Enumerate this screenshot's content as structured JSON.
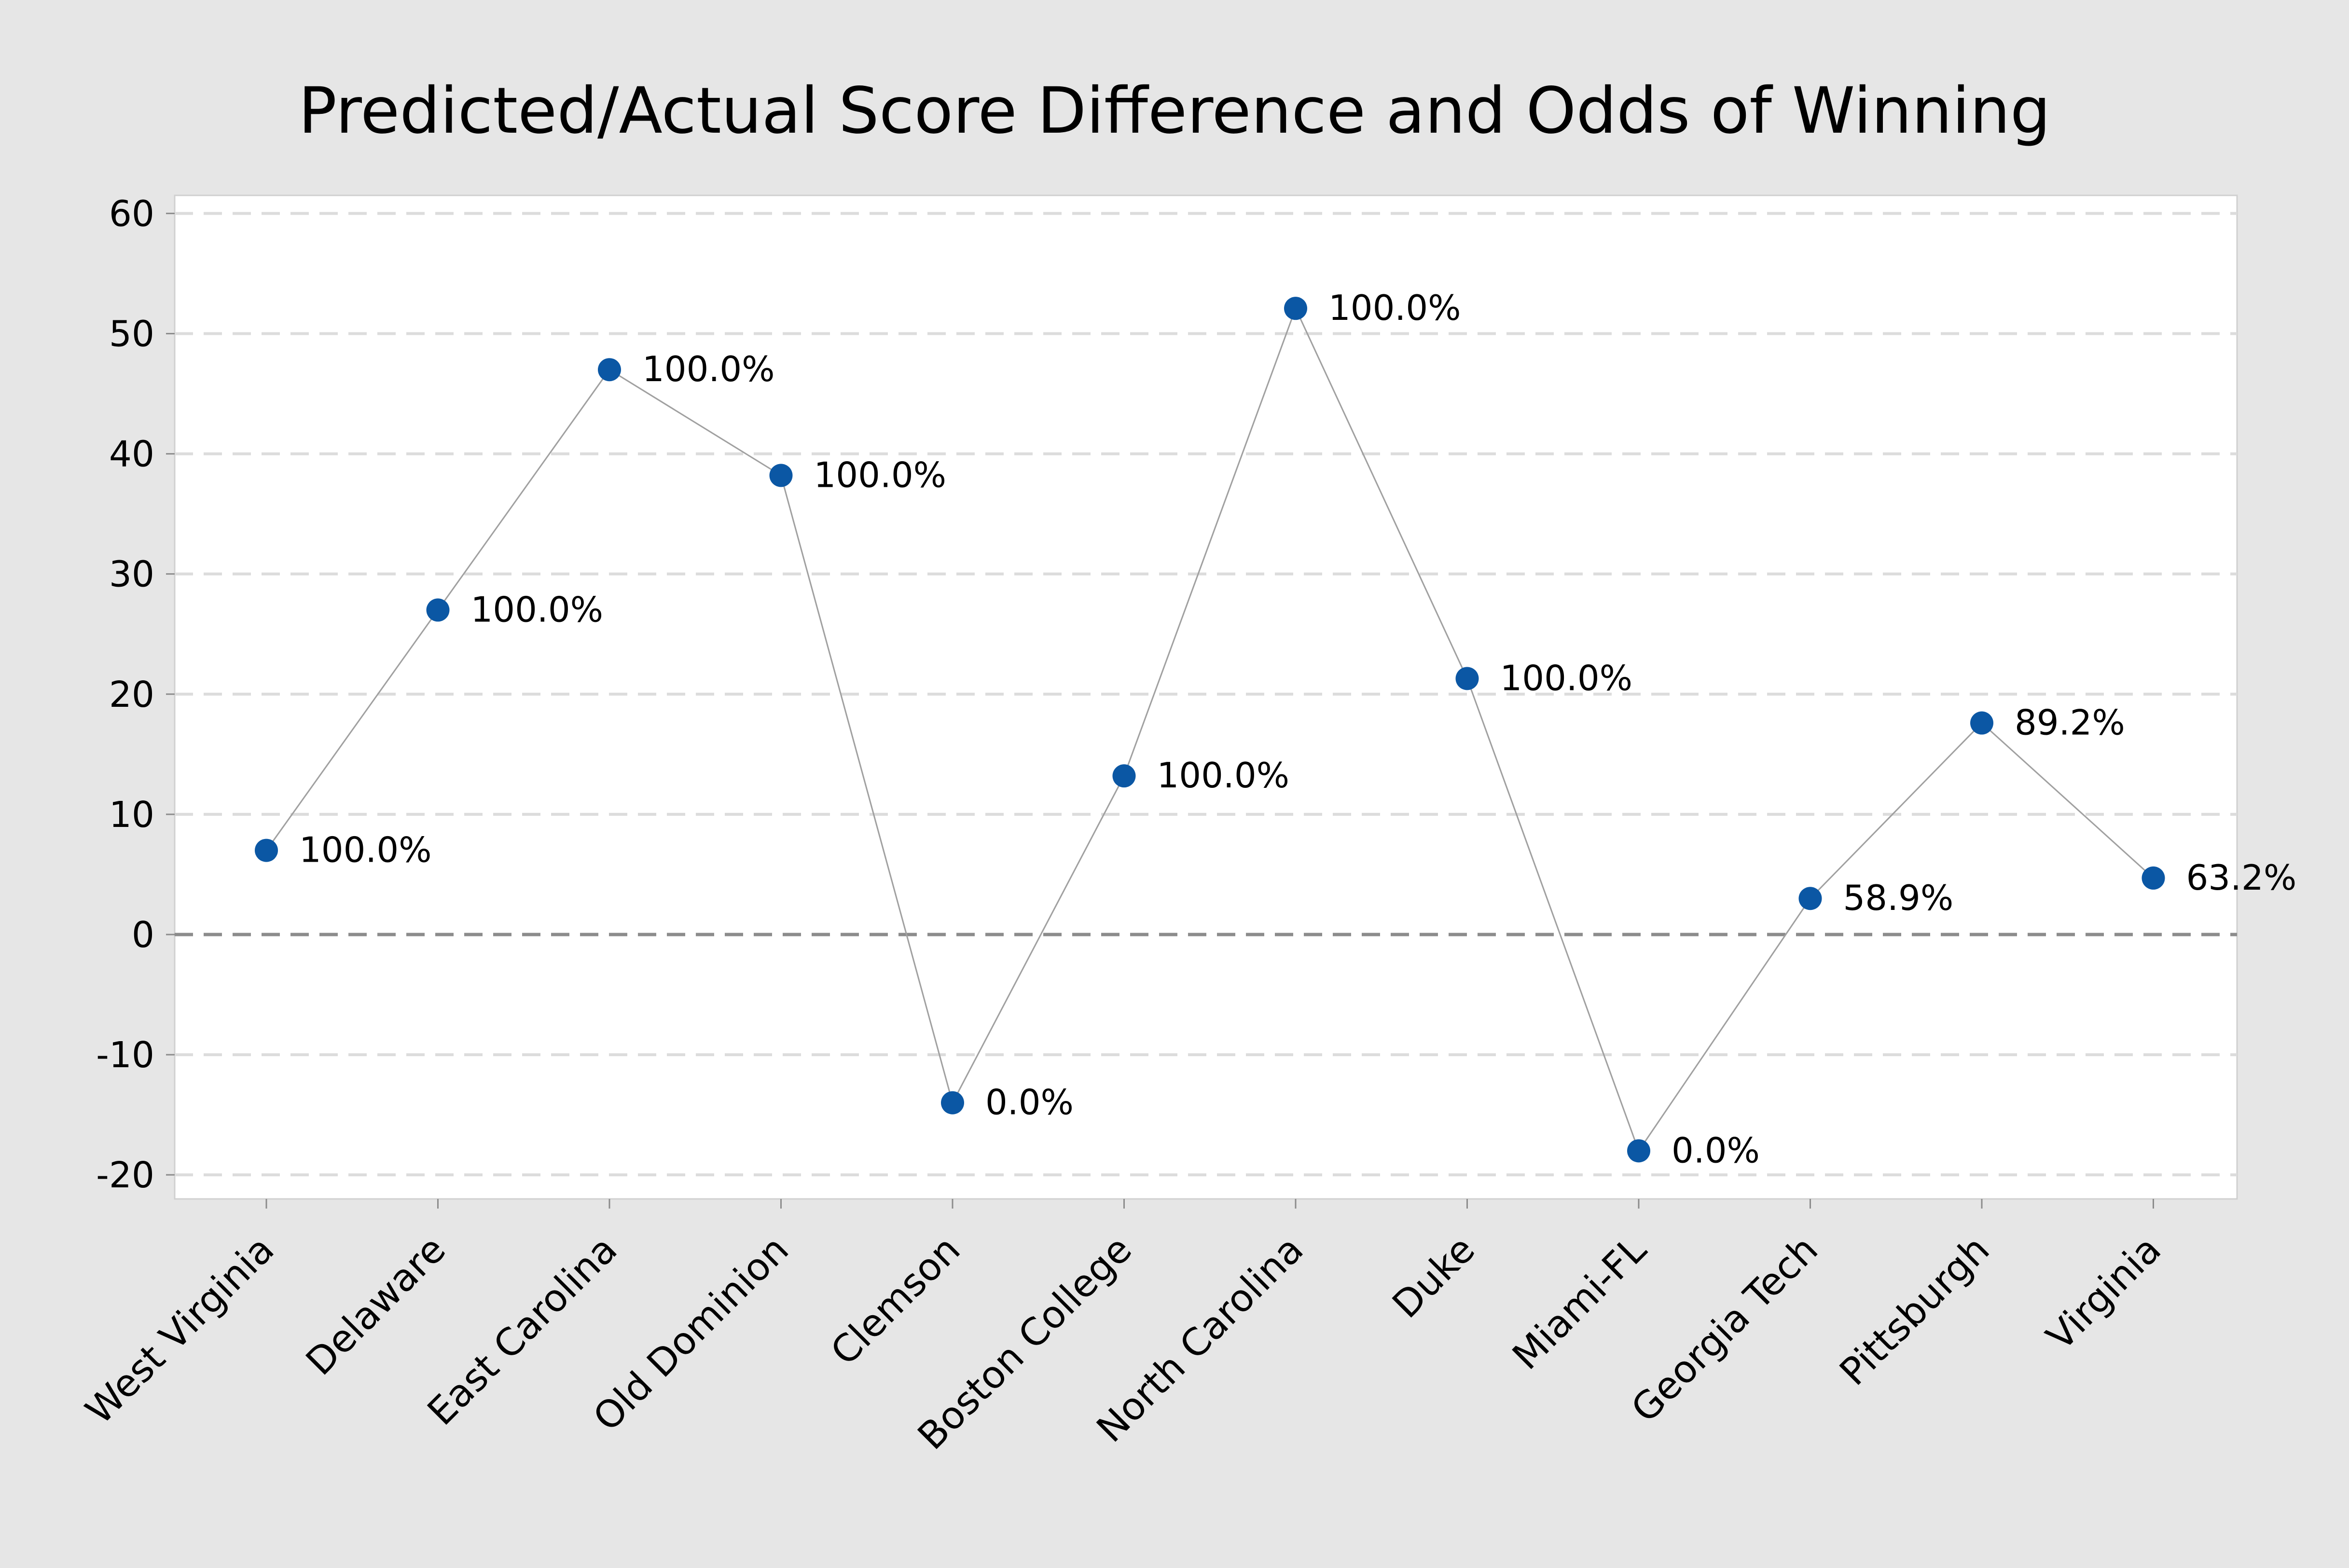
{
  "chart_data": {
    "type": "line",
    "title": "Predicted/Actual Score Difference and Odds of Winning",
    "xlabel": "",
    "ylabel": "",
    "categories": [
      "West Virginia",
      "Delaware",
      "East Carolina",
      "Old Dominion",
      "Clemson",
      "Boston College",
      "North Carolina",
      "Duke",
      "Miami-FL",
      "Georgia Tech",
      "Pittsburgh",
      "Virginia"
    ],
    "values": [
      7,
      27,
      47,
      38.2,
      -14,
      13.2,
      52.1,
      21.3,
      -18,
      3,
      17.6,
      4.7
    ],
    "point_labels": [
      "100.0%",
      "100.0%",
      "100.0%",
      "100.0%",
      "0.0%",
      "100.0%",
      "100.0%",
      "100.0%",
      "0.0%",
      "58.9%",
      "89.2%",
      "63.2%"
    ],
    "yticks": [
      "60",
      "50",
      "40",
      "30",
      "20",
      "10",
      "0",
      "-10",
      "-20"
    ],
    "ylim": [
      -22,
      61.5
    ],
    "grid": true,
    "reference_line": 0,
    "colors": {
      "marker": "#0b57a4",
      "line": "#a0a0a0",
      "grid": "#dcdcdc",
      "zero_line": "#8c8c8c",
      "plot_background": "#ffffff",
      "background": "#e6e6e6"
    }
  }
}
